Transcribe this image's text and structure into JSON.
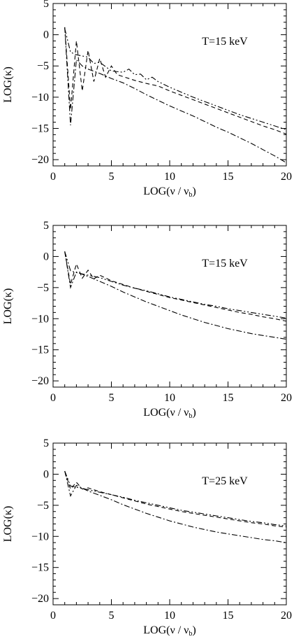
{
  "figure": {
    "panels_count": 3
  },
  "chart_data": [
    {
      "type": "line",
      "annotation": "T=15 keV",
      "xlabel": "LOG(ν / ν",
      "xlabel_sub": "b",
      "xlabel_end": ")",
      "ylabel": "LOG(κ)",
      "xlim": [
        0,
        20
      ],
      "ylim": [
        -21,
        5
      ],
      "x_ticks": [
        0,
        5,
        10,
        15,
        20
      ],
      "y_ticks": [
        5,
        0,
        -5,
        -10,
        -15,
        -20
      ],
      "grid": false,
      "series": [
        {
          "style": "dash",
          "points": [
            [
              1,
              1.2
            ],
            [
              1.5,
              -12
            ],
            [
              2,
              -1
            ],
            [
              2.5,
              -9
            ],
            [
              3,
              -2.5
            ],
            [
              3.5,
              -7.5
            ],
            [
              4,
              -3.8
            ],
            [
              4.5,
              -6.8
            ],
            [
              5,
              -5
            ],
            [
              5.5,
              -6.4
            ],
            [
              6,
              -6.7
            ],
            [
              7,
              -7.3
            ],
            [
              8,
              -7.8
            ],
            [
              9,
              -8.2
            ],
            [
              10,
              -9
            ],
            [
              11,
              -9.7
            ],
            [
              12,
              -10.4
            ],
            [
              13,
              -11.1
            ],
            [
              14,
              -11.8
            ],
            [
              15,
              -12.5
            ],
            [
              16,
              -13.2
            ],
            [
              17,
              -13.9
            ],
            [
              18,
              -14.6
            ],
            [
              19,
              -15.2
            ],
            [
              20,
              -15.9
            ]
          ]
        },
        {
          "style": "dash-dot-dot",
          "points": [
            [
              1,
              1
            ],
            [
              1.5,
              -2.8
            ],
            [
              2,
              -3.2
            ],
            [
              3,
              -3.6
            ],
            [
              3.5,
              -4.6
            ],
            [
              4,
              -4.4
            ],
            [
              5,
              -5.8
            ],
            [
              6,
              -6
            ],
            [
              6.5,
              -5.5
            ],
            [
              7,
              -6.4
            ],
            [
              7.5,
              -6.3
            ],
            [
              8,
              -7.2
            ],
            [
              8.5,
              -6.8
            ],
            [
              9,
              -7.5
            ],
            [
              10,
              -8.4
            ],
            [
              11,
              -9.2
            ],
            [
              12,
              -10
            ],
            [
              13,
              -10.7
            ],
            [
              14,
              -11.4
            ],
            [
              15,
              -12.1
            ],
            [
              16,
              -12.8
            ],
            [
              17,
              -13.4
            ],
            [
              18,
              -14
            ],
            [
              19,
              -14.6
            ],
            [
              20,
              -15.2
            ]
          ]
        },
        {
          "style": "dash-dot",
          "points": [
            [
              1,
              1.2
            ],
            [
              1.5,
              -14.5
            ],
            [
              2,
              -4
            ],
            [
              2.5,
              -5
            ],
            [
              3,
              -5.5
            ],
            [
              4,
              -6.2
            ],
            [
              5,
              -7
            ],
            [
              6,
              -7.7
            ],
            [
              7,
              -8.6
            ],
            [
              8,
              -9.6
            ],
            [
              9,
              -10.5
            ],
            [
              10,
              -11.4
            ],
            [
              11,
              -12.2
            ],
            [
              12,
              -13
            ],
            [
              13,
              -13.9
            ],
            [
              14,
              -14.8
            ],
            [
              15,
              -15.6
            ],
            [
              16,
              -16.5
            ],
            [
              17,
              -17.4
            ],
            [
              18,
              -18.4
            ],
            [
              19,
              -19.4
            ],
            [
              20,
              -20.5
            ]
          ]
        }
      ]
    },
    {
      "type": "line",
      "annotation": "T=15 keV",
      "xlabel": "LOG(ν / ν",
      "xlabel_sub": "b",
      "xlabel_end": ")",
      "ylabel": "LOG(κ)",
      "xlim": [
        0,
        20
      ],
      "ylim": [
        -21,
        5
      ],
      "x_ticks": [
        0,
        5,
        10,
        15,
        20
      ],
      "y_ticks": [
        5,
        0,
        -5,
        -10,
        -15,
        -20
      ],
      "grid": false,
      "series": [
        {
          "style": "dash",
          "points": [
            [
              1,
              0.8
            ],
            [
              1.5,
              -4.5
            ],
            [
              2,
              -1.2
            ],
            [
              2.5,
              -3.5
            ],
            [
              3,
              -2.2
            ],
            [
              3.5,
              -3.6
            ],
            [
              4,
              -3
            ],
            [
              5,
              -3.9
            ],
            [
              6,
              -4.5
            ],
            [
              7,
              -5.1
            ],
            [
              8,
              -5.6
            ],
            [
              9,
              -6.1
            ],
            [
              10,
              -6.6
            ],
            [
              11,
              -7
            ],
            [
              12,
              -7.4
            ],
            [
              13,
              -7.8
            ],
            [
              14,
              -8.2
            ],
            [
              15,
              -8.6
            ],
            [
              16,
              -9
            ],
            [
              17,
              -9.3
            ],
            [
              18,
              -9.7
            ],
            [
              19,
              -10
            ],
            [
              20,
              -10.4
            ]
          ]
        },
        {
          "style": "dash-dot-dot",
          "points": [
            [
              1,
              0.8
            ],
            [
              1.5,
              -2.3
            ],
            [
              2,
              -2.6
            ],
            [
              3,
              -3
            ],
            [
              4,
              -3.4
            ],
            [
              5,
              -4
            ],
            [
              6,
              -4.6
            ],
            [
              7,
              -5.1
            ],
            [
              8,
              -5.5
            ],
            [
              9,
              -6
            ],
            [
              10,
              -6.5
            ],
            [
              11,
              -6.9
            ],
            [
              12,
              -7.3
            ],
            [
              13,
              -7.7
            ],
            [
              14,
              -8
            ],
            [
              15,
              -8.4
            ],
            [
              16,
              -8.7
            ],
            [
              17,
              -9
            ],
            [
              18,
              -9.3
            ],
            [
              19,
              -9.6
            ],
            [
              20,
              -9.9
            ]
          ]
        },
        {
          "style": "dash-dot",
          "points": [
            [
              1,
              0.8
            ],
            [
              1.5,
              -5
            ],
            [
              2,
              -2.5
            ],
            [
              3,
              -3.2
            ],
            [
              4,
              -4
            ],
            [
              5,
              -4.8
            ],
            [
              6,
              -5.7
            ],
            [
              7,
              -6.5
            ],
            [
              8,
              -7.3
            ],
            [
              9,
              -8
            ],
            [
              10,
              -8.7
            ],
            [
              11,
              -9.4
            ],
            [
              12,
              -10
            ],
            [
              13,
              -10.6
            ],
            [
              14,
              -11.1
            ],
            [
              15,
              -11.6
            ],
            [
              16,
              -12
            ],
            [
              17,
              -12.4
            ],
            [
              18,
              -12.7
            ],
            [
              19,
              -13
            ],
            [
              20,
              -13.3
            ]
          ]
        }
      ]
    },
    {
      "type": "line",
      "annotation": "T=25 keV",
      "xlabel": "LOG(ν / ν",
      "xlabel_sub": "b",
      "xlabel_end": ")",
      "ylabel": "LOG(κ)",
      "xlim": [
        0,
        20
      ],
      "ylim": [
        -21,
        5
      ],
      "x_ticks": [
        0,
        5,
        10,
        15,
        20
      ],
      "y_ticks": [
        5,
        0,
        -5,
        -10,
        -15,
        -20
      ],
      "grid": false,
      "series": [
        {
          "style": "dash",
          "points": [
            [
              1,
              0.5
            ],
            [
              1.5,
              -2.4
            ],
            [
              2,
              -1.3
            ],
            [
              2.5,
              -2.4
            ],
            [
              3,
              -2.2
            ],
            [
              4,
              -2.8
            ],
            [
              5,
              -3.3
            ],
            [
              6,
              -3.8
            ],
            [
              7,
              -4.3
            ],
            [
              8,
              -4.8
            ],
            [
              9,
              -5.2
            ],
            [
              10,
              -5.6
            ],
            [
              11,
              -6
            ],
            [
              12,
              -6.3
            ],
            [
              13,
              -6.6
            ],
            [
              14,
              -6.9
            ],
            [
              15,
              -7.2
            ],
            [
              16,
              -7.5
            ],
            [
              17,
              -7.8
            ],
            [
              18,
              -8
            ],
            [
              19,
              -8.3
            ],
            [
              20,
              -8.5
            ]
          ]
        },
        {
          "style": "dash-dot-dot",
          "points": [
            [
              1,
              0.5
            ],
            [
              1.5,
              -1.9
            ],
            [
              2,
              -2.1
            ],
            [
              3,
              -2.5
            ],
            [
              4,
              -2.9
            ],
            [
              5,
              -3.3
            ],
            [
              6,
              -3.7
            ],
            [
              7,
              -4.2
            ],
            [
              8,
              -4.6
            ],
            [
              9,
              -5
            ],
            [
              10,
              -5.4
            ],
            [
              11,
              -5.8
            ],
            [
              12,
              -6.1
            ],
            [
              13,
              -6.4
            ],
            [
              14,
              -6.7
            ],
            [
              15,
              -7
            ],
            [
              16,
              -7.3
            ],
            [
              17,
              -7.6
            ],
            [
              18,
              -7.8
            ],
            [
              19,
              -8.1
            ],
            [
              20,
              -8.3
            ]
          ]
        },
        {
          "style": "dash-dot",
          "points": [
            [
              1,
              0.5
            ],
            [
              1.5,
              -3.5
            ],
            [
              2,
              -1.8
            ],
            [
              3,
              -2.7
            ],
            [
              4,
              -3.4
            ],
            [
              5,
              -4.1
            ],
            [
              6,
              -4.9
            ],
            [
              7,
              -5.6
            ],
            [
              8,
              -6.3
            ],
            [
              9,
              -6.9
            ],
            [
              10,
              -7.5
            ],
            [
              11,
              -8
            ],
            [
              12,
              -8.5
            ],
            [
              13,
              -8.9
            ],
            [
              14,
              -9.3
            ],
            [
              15,
              -9.6
            ],
            [
              16,
              -9.9
            ],
            [
              17,
              -10.2
            ],
            [
              18,
              -10.5
            ],
            [
              19,
              -10.7
            ],
            [
              20,
              -11
            ]
          ]
        }
      ]
    }
  ]
}
